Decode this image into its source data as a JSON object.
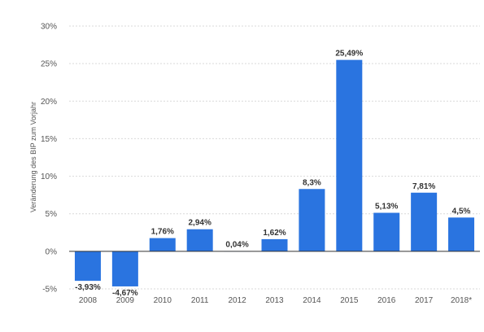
{
  "chart_data": {
    "type": "bar",
    "categories": [
      "2008",
      "2009",
      "2010",
      "2011",
      "2012",
      "2013",
      "2014",
      "2015",
      "2016",
      "2017",
      "2018*"
    ],
    "values": [
      -3.93,
      -4.67,
      1.76,
      2.94,
      0.04,
      1.62,
      8.3,
      25.49,
      5.13,
      7.81,
      4.5
    ],
    "data_labels": [
      "-3,93%",
      "-4,67%",
      "1,76%",
      "2,94%",
      "0,04%",
      "1,62%",
      "8,3%",
      "25,49%",
      "5,13%",
      "7,81%",
      "4,5%"
    ],
    "title": "",
    "xlabel": "",
    "ylabel": "Veränderung des BIP zum Vorjahr",
    "ylim": [
      -5,
      30
    ],
    "y_ticks": [
      30,
      25,
      20,
      15,
      10,
      5,
      0,
      -5
    ],
    "y_tick_labels": [
      "30%",
      "25%",
      "20%",
      "15%",
      "10%",
      "5%",
      "0%",
      "-5%"
    ],
    "grid": true,
    "bar_color": "#2a74e0"
  }
}
